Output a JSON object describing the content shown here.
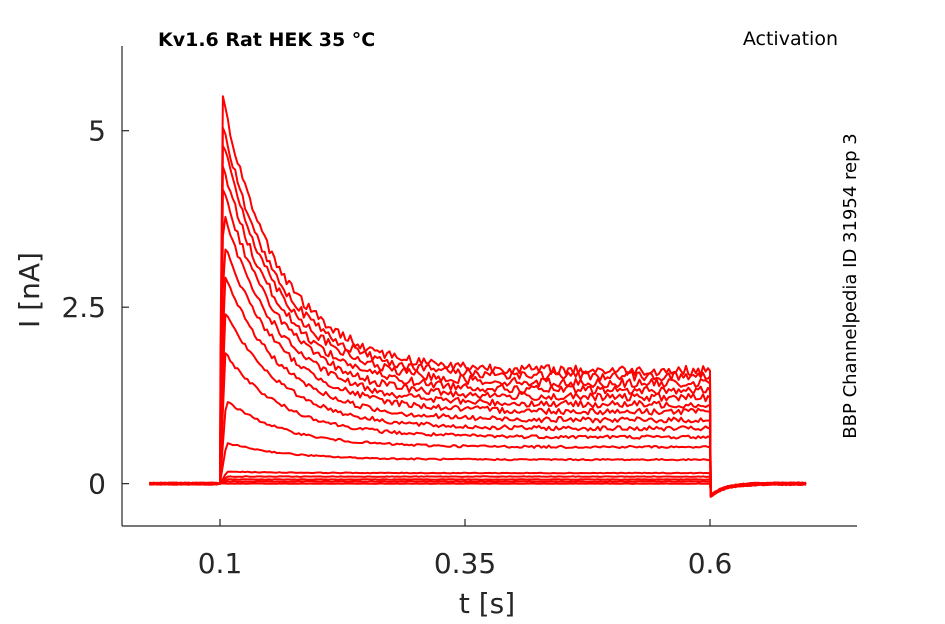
{
  "chart_data": {
    "type": "line",
    "title": "Kv1.6  Rat  HEK  35 °C",
    "protocol": "Activation",
    "side_note": "BBP Channelpedia ID 31954 rep 3",
    "xlabel": "t [s]",
    "ylabel": "I [nA]",
    "xlim": [
      0.0,
      0.75
    ],
    "ylim": [
      -0.6,
      6.2
    ],
    "xticks": [
      0.1,
      0.35,
      0.6
    ],
    "xtick_labels": [
      "0.1",
      "0.35",
      "0.6"
    ],
    "yticks": [
      0,
      2.5,
      5
    ],
    "ytick_labels": [
      "0",
      "2.5",
      "5"
    ],
    "grid": false,
    "color": "#ff0000",
    "pulse": {
      "start": 0.1,
      "end": 0.6,
      "record_start": 0.028,
      "record_end": 0.7
    },
    "series": [
      {
        "peak": 0.0,
        "end": 0.0
      },
      {
        "peak": 0.03,
        "end": 0.03
      },
      {
        "peak": 0.06,
        "end": 0.06
      },
      {
        "peak": 0.1,
        "end": 0.1
      },
      {
        "peak": 0.17,
        "end": 0.15
      },
      {
        "peak": 0.58,
        "end": 0.34
      },
      {
        "peak": 1.18,
        "end": 0.52
      },
      {
        "peak": 1.84,
        "end": 0.66
      },
      {
        "peak": 2.44,
        "end": 0.78
      },
      {
        "peak": 2.95,
        "end": 0.9
      },
      {
        "peak": 3.42,
        "end": 1.02
      },
      {
        "peak": 3.83,
        "end": 1.12
      },
      {
        "peak": 4.2,
        "end": 1.22
      },
      {
        "peak": 4.55,
        "end": 1.32
      },
      {
        "peak": 4.88,
        "end": 1.42
      },
      {
        "peak": 5.12,
        "end": 1.52
      },
      {
        "peak": 5.52,
        "end": 1.6
      }
    ]
  }
}
